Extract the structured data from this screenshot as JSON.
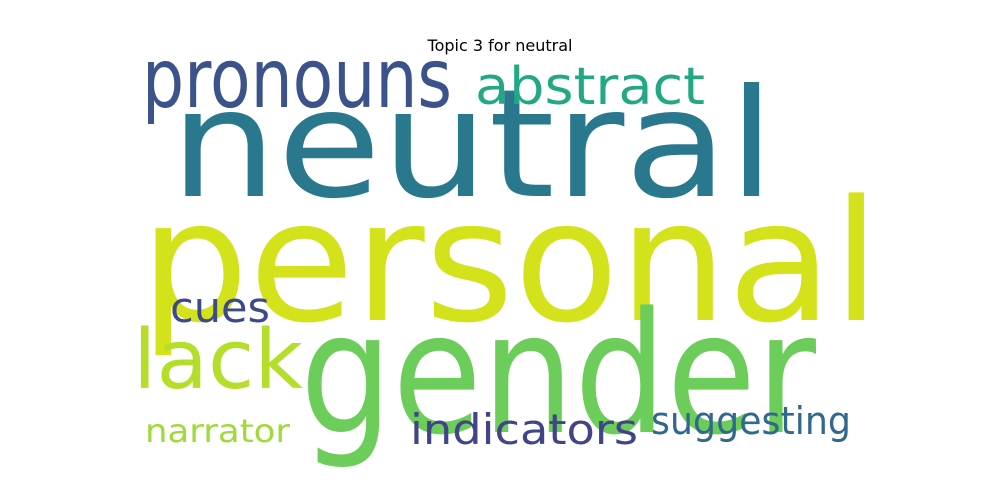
{
  "chart_data": {
    "type": "wordcloud",
    "title": "Topic 3 for neutral",
    "words": [
      {
        "text": "personal",
        "color": "#d3e21b"
      },
      {
        "text": "neutral",
        "color": "#2a788e"
      },
      {
        "text": "gender",
        "color": "#6ccd5a"
      },
      {
        "text": "pronouns",
        "color": "#3b528b"
      },
      {
        "text": "abstract",
        "color": "#22a884"
      },
      {
        "text": "lack",
        "color": "#b5de2b"
      },
      {
        "text": "cues",
        "color": "#3e4989"
      },
      {
        "text": "indicators",
        "color": "#414487"
      },
      {
        "text": "suggesting",
        "color": "#31688e"
      },
      {
        "text": "narrator",
        "color": "#a0da39"
      }
    ]
  }
}
